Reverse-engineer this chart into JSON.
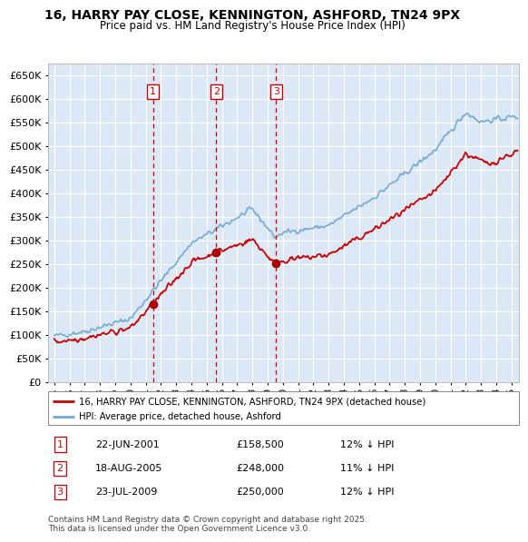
{
  "title": "16, HARRY PAY CLOSE, KENNINGTON, ASHFORD, TN24 9PX",
  "subtitle": "Price paid vs. HM Land Registry's House Price Index (HPI)",
  "legend_line1": "16, HARRY PAY CLOSE, KENNINGTON, ASHFORD, TN24 9PX (detached house)",
  "legend_line2": "HPI: Average price, detached house, Ashford",
  "footer": "Contains HM Land Registry data © Crown copyright and database right 2025.\nThis data is licensed under the Open Government Licence v3.0.",
  "transactions": [
    {
      "num": 1,
      "date": "22-JUN-2001",
      "price": 158500,
      "year": 2001.47,
      "pct": "12%",
      "dir": "↓"
    },
    {
      "num": 2,
      "date": "18-AUG-2005",
      "price": 248000,
      "year": 2005.63,
      "pct": "11%",
      "dir": "↓"
    },
    {
      "num": 3,
      "date": "23-JUL-2009",
      "price": 250000,
      "year": 2009.56,
      "pct": "12%",
      "dir": "↓"
    }
  ],
  "ylim": [
    0,
    675000
  ],
  "xlim_start": 1994.6,
  "xlim_end": 2025.5,
  "fig_bg_color": "#f0f0f0",
  "plot_bg_color": "#dce8f5",
  "grid_color": "#ffffff",
  "red_line_color": "#cc0000",
  "blue_line_color": "#6fa8d0",
  "vline_color": "#cc0000",
  "marker_box_color": "#cc0000",
  "dot_color": "#aa0000"
}
